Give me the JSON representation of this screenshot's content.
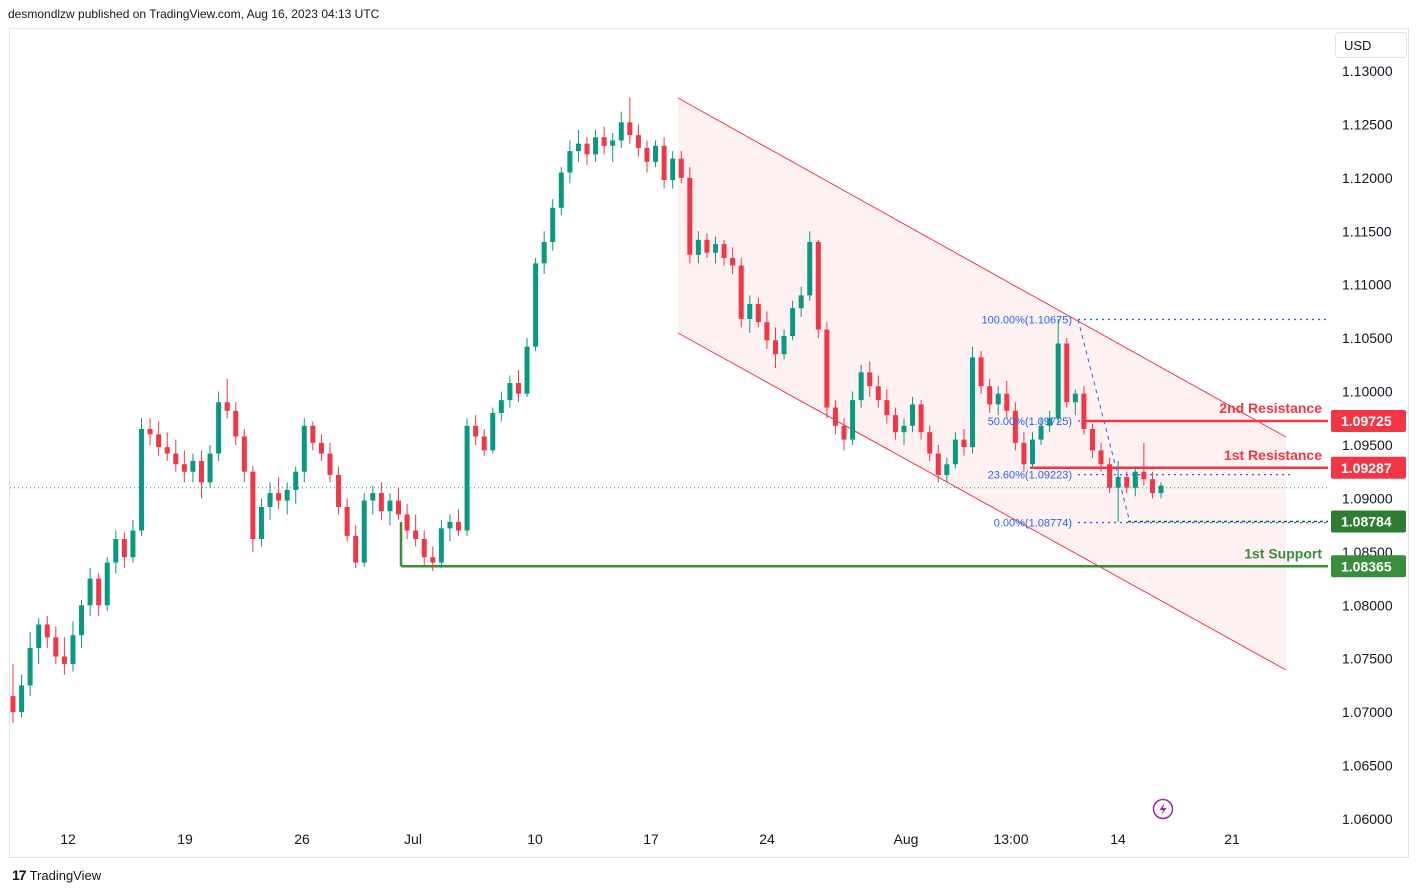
{
  "header": {
    "text": "desmondlzw published on TradingView.com, Aug 16, 2023 04:13 UTC"
  },
  "currency": "USD",
  "brand": {
    "logo": "17",
    "name": "TradingView"
  },
  "icon": "lightning-icon",
  "colors": {
    "up": "#089981",
    "down": "#f23645",
    "channel": "#f23645",
    "support": "#388e3c",
    "fib": "#2962ff"
  },
  "chart_data": {
    "type": "candlestick",
    "y_ticks": [
      "1.13000",
      "1.12500",
      "1.12000",
      "1.11500",
      "1.11000",
      "1.10500",
      "1.10000",
      "1.09500",
      "1.09000",
      "1.08500",
      "1.08000",
      "1.07500",
      "1.07000",
      "1.06500",
      "1.06000"
    ],
    "x_ticks": [
      "12",
      "19",
      "26",
      "Jul",
      "10",
      "17",
      "24",
      "Aug",
      "13:00",
      "14",
      "21"
    ],
    "ylim": [
      1.06,
      1.133
    ],
    "levels": [
      {
        "label": "2nd Resistance",
        "value": "1.09725",
        "color": "#f23645"
      },
      {
        "label": "1st Resistance",
        "value": "1.09287",
        "color": "#f23645"
      },
      {
        "label": "1st Support",
        "value": "1.08365",
        "color": "#388e3c"
      }
    ],
    "fib_levels": [
      {
        "text": "100.00%(1.10675)",
        "value": 1.10675
      },
      {
        "text": "50.00%(1.09725)",
        "value": 1.09725
      },
      {
        "text": "23.60%(1.09223)",
        "value": 1.09223
      },
      {
        "text": "0.00%(1.08774)",
        "value": 1.08774
      }
    ],
    "marker_value": "1.08784",
    "current_price": 1.091,
    "candles": [
      {
        "o": 1.0715,
        "h": 1.0745,
        "l": 1.069,
        "c": 1.07
      },
      {
        "o": 1.07,
        "h": 1.0735,
        "l": 1.0695,
        "c": 1.0725
      },
      {
        "o": 1.0725,
        "h": 1.0775,
        "l": 1.0715,
        "c": 1.076
      },
      {
        "o": 1.076,
        "h": 1.0788,
        "l": 1.0745,
        "c": 1.0782
      },
      {
        "o": 1.0782,
        "h": 1.079,
        "l": 1.076,
        "c": 1.077
      },
      {
        "o": 1.077,
        "h": 1.078,
        "l": 1.0745,
        "c": 1.0752
      },
      {
        "o": 1.0752,
        "h": 1.077,
        "l": 1.0735,
        "c": 1.0745
      },
      {
        "o": 1.0745,
        "h": 1.0785,
        "l": 1.0738,
        "c": 1.0772
      },
      {
        "o": 1.0772,
        "h": 1.0805,
        "l": 1.076,
        "c": 1.08
      },
      {
        "o": 1.08,
        "h": 1.0835,
        "l": 1.079,
        "c": 1.0825
      },
      {
        "o": 1.0825,
        "h": 1.083,
        "l": 1.079,
        "c": 1.08
      },
      {
        "o": 1.08,
        "h": 1.0845,
        "l": 1.0795,
        "c": 1.084
      },
      {
        "o": 1.084,
        "h": 1.087,
        "l": 1.083,
        "c": 1.0862
      },
      {
        "o": 1.0862,
        "h": 1.0868,
        "l": 1.0835,
        "c": 1.0845
      },
      {
        "o": 1.0845,
        "h": 1.088,
        "l": 1.084,
        "c": 1.087
      },
      {
        "o": 1.087,
        "h": 1.0975,
        "l": 1.0865,
        "c": 1.0965
      },
      {
        "o": 1.0965,
        "h": 1.0975,
        "l": 1.095,
        "c": 1.096
      },
      {
        "o": 1.096,
        "h": 1.0972,
        "l": 1.094,
        "c": 1.0948
      },
      {
        "o": 1.0948,
        "h": 1.0962,
        "l": 1.0935,
        "c": 1.0942
      },
      {
        "o": 1.0942,
        "h": 1.0955,
        "l": 1.0925,
        "c": 1.0932
      },
      {
        "o": 1.0932,
        "h": 1.0945,
        "l": 1.0915,
        "c": 1.0925
      },
      {
        "o": 1.0925,
        "h": 1.0942,
        "l": 1.0915,
        "c": 1.0935
      },
      {
        "o": 1.0935,
        "h": 1.0945,
        "l": 1.09,
        "c": 1.0915
      },
      {
        "o": 1.0915,
        "h": 1.095,
        "l": 1.091,
        "c": 1.0942
      },
      {
        "o": 1.0942,
        "h": 1.1,
        "l": 1.0935,
        "c": 1.099
      },
      {
        "o": 1.099,
        "h": 1.1012,
        "l": 1.0975,
        "c": 1.0982
      },
      {
        "o": 1.0982,
        "h": 1.099,
        "l": 1.095,
        "c": 1.0958
      },
      {
        "o": 1.0958,
        "h": 1.0965,
        "l": 1.0915,
        "c": 1.0925
      },
      {
        "o": 1.0925,
        "h": 1.093,
        "l": 1.085,
        "c": 1.0862
      },
      {
        "o": 1.0862,
        "h": 1.09,
        "l": 1.0855,
        "c": 1.0892
      },
      {
        "o": 1.0892,
        "h": 1.0915,
        "l": 1.088,
        "c": 1.0905
      },
      {
        "o": 1.0905,
        "h": 1.092,
        "l": 1.089,
        "c": 1.0898
      },
      {
        "o": 1.0898,
        "h": 1.0915,
        "l": 1.0885,
        "c": 1.0908
      },
      {
        "o": 1.0908,
        "h": 1.093,
        "l": 1.0895,
        "c": 1.0925
      },
      {
        "o": 1.0925,
        "h": 1.0975,
        "l": 1.0915,
        "c": 1.0968
      },
      {
        "o": 1.0968,
        "h": 1.0972,
        "l": 1.0945,
        "c": 1.0952
      },
      {
        "o": 1.0952,
        "h": 1.096,
        "l": 1.0935,
        "c": 1.0942
      },
      {
        "o": 1.0942,
        "h": 1.0952,
        "l": 1.0915,
        "c": 1.0922
      },
      {
        "o": 1.0922,
        "h": 1.093,
        "l": 1.0885,
        "c": 1.0892
      },
      {
        "o": 1.0892,
        "h": 1.09,
        "l": 1.086,
        "c": 1.0865
      },
      {
        "o": 1.0865,
        "h": 1.0875,
        "l": 1.0835,
        "c": 1.084
      },
      {
        "o": 1.084,
        "h": 1.0905,
        "l": 1.0836,
        "c": 1.0898
      },
      {
        "o": 1.0898,
        "h": 1.0912,
        "l": 1.0885,
        "c": 1.0905
      },
      {
        "o": 1.0905,
        "h": 1.0915,
        "l": 1.088,
        "c": 1.0888
      },
      {
        "o": 1.0888,
        "h": 1.0905,
        "l": 1.0875,
        "c": 1.0898
      },
      {
        "o": 1.0898,
        "h": 1.091,
        "l": 1.088,
        "c": 1.0885
      },
      {
        "o": 1.0885,
        "h": 1.0895,
        "l": 1.0862,
        "c": 1.087
      },
      {
        "o": 1.087,
        "h": 1.0885,
        "l": 1.0855,
        "c": 1.0862
      },
      {
        "o": 1.0862,
        "h": 1.087,
        "l": 1.0838,
        "c": 1.0845
      },
      {
        "o": 1.0845,
        "h": 1.0855,
        "l": 1.0832,
        "c": 1.084
      },
      {
        "o": 1.084,
        "h": 1.088,
        "l": 1.0835,
        "c": 1.0872
      },
      {
        "o": 1.0872,
        "h": 1.0885,
        "l": 1.086,
        "c": 1.0878
      },
      {
        "o": 1.0878,
        "h": 1.089,
        "l": 1.0865,
        "c": 1.087
      },
      {
        "o": 1.087,
        "h": 1.0975,
        "l": 1.0865,
        "c": 1.0968
      },
      {
        "o": 1.0968,
        "h": 1.0978,
        "l": 1.095,
        "c": 1.0958
      },
      {
        "o": 1.0958,
        "h": 1.0965,
        "l": 1.094,
        "c": 1.0945
      },
      {
        "o": 1.0945,
        "h": 1.0985,
        "l": 1.0942,
        "c": 1.098
      },
      {
        "o": 1.098,
        "h": 1.1,
        "l": 1.0972,
        "c": 1.0992
      },
      {
        "o": 1.0992,
        "h": 1.1015,
        "l": 1.0985,
        "c": 1.1008
      },
      {
        "o": 1.1008,
        "h": 1.102,
        "l": 1.099,
        "c": 1.0998
      },
      {
        "o": 1.0998,
        "h": 1.105,
        "l": 1.0995,
        "c": 1.1042
      },
      {
        "o": 1.1042,
        "h": 1.1125,
        "l": 1.1038,
        "c": 1.112
      },
      {
        "o": 1.112,
        "h": 1.115,
        "l": 1.111,
        "c": 1.114
      },
      {
        "o": 1.114,
        "h": 1.118,
        "l": 1.1132,
        "c": 1.1172
      },
      {
        "o": 1.1172,
        "h": 1.121,
        "l": 1.1165,
        "c": 1.1205
      },
      {
        "o": 1.1205,
        "h": 1.1235,
        "l": 1.1195,
        "c": 1.1225
      },
      {
        "o": 1.1225,
        "h": 1.1245,
        "l": 1.1215,
        "c": 1.1232
      },
      {
        "o": 1.1232,
        "h": 1.1238,
        "l": 1.1212,
        "c": 1.1222
      },
      {
        "o": 1.1222,
        "h": 1.1245,
        "l": 1.1215,
        "c": 1.1238
      },
      {
        "o": 1.1238,
        "h": 1.1248,
        "l": 1.1222,
        "c": 1.123
      },
      {
        "o": 1.123,
        "h": 1.1242,
        "l": 1.1215,
        "c": 1.1235
      },
      {
        "o": 1.1235,
        "h": 1.1262,
        "l": 1.1228,
        "c": 1.1252
      },
      {
        "o": 1.1252,
        "h": 1.1275,
        "l": 1.1232,
        "c": 1.124
      },
      {
        "o": 1.124,
        "h": 1.125,
        "l": 1.122,
        "c": 1.1228
      },
      {
        "o": 1.1228,
        "h": 1.1235,
        "l": 1.1205,
        "c": 1.1215
      },
      {
        "o": 1.1215,
        "h": 1.1235,
        "l": 1.121,
        "c": 1.123
      },
      {
        "o": 1.123,
        "h": 1.1238,
        "l": 1.119,
        "c": 1.1198
      },
      {
        "o": 1.1198,
        "h": 1.1225,
        "l": 1.119,
        "c": 1.1218
      },
      {
        "o": 1.1218,
        "h": 1.1225,
        "l": 1.1195,
        "c": 1.12
      },
      {
        "o": 1.12,
        "h": 1.121,
        "l": 1.112,
        "c": 1.1128
      },
      {
        "o": 1.1128,
        "h": 1.115,
        "l": 1.112,
        "c": 1.1142
      },
      {
        "o": 1.1142,
        "h": 1.1148,
        "l": 1.1125,
        "c": 1.113
      },
      {
        "o": 1.113,
        "h": 1.1145,
        "l": 1.112,
        "c": 1.1138
      },
      {
        "o": 1.1138,
        "h": 1.1142,
        "l": 1.1118,
        "c": 1.1125
      },
      {
        "o": 1.1125,
        "h": 1.1135,
        "l": 1.111,
        "c": 1.1118
      },
      {
        "o": 1.1118,
        "h": 1.1125,
        "l": 1.106,
        "c": 1.1068
      },
      {
        "o": 1.1068,
        "h": 1.109,
        "l": 1.1055,
        "c": 1.1082
      },
      {
        "o": 1.1082,
        "h": 1.1088,
        "l": 1.106,
        "c": 1.1065
      },
      {
        "o": 1.1065,
        "h": 1.1075,
        "l": 1.104,
        "c": 1.1048
      },
      {
        "o": 1.1048,
        "h": 1.106,
        "l": 1.1022,
        "c": 1.1035
      },
      {
        "o": 1.1035,
        "h": 1.1058,
        "l": 1.103,
        "c": 1.1052
      },
      {
        "o": 1.1052,
        "h": 1.1085,
        "l": 1.1048,
        "c": 1.1078
      },
      {
        "o": 1.1078,
        "h": 1.1098,
        "l": 1.107,
        "c": 1.109
      },
      {
        "o": 1.109,
        "h": 1.115,
        "l": 1.1085,
        "c": 1.114
      },
      {
        "o": 1.114,
        "h": 1.1142,
        "l": 1.105,
        "c": 1.1058
      },
      {
        "o": 1.1058,
        "h": 1.1065,
        "l": 1.0975,
        "c": 1.0985
      },
      {
        "o": 1.0985,
        "h": 1.0992,
        "l": 1.096,
        "c": 1.0968
      },
      {
        "o": 1.0968,
        "h": 1.0975,
        "l": 1.0945,
        "c": 1.0955
      },
      {
        "o": 1.0955,
        "h": 1.1,
        "l": 1.095,
        "c": 1.0992
      },
      {
        "o": 1.0992,
        "h": 1.1025,
        "l": 1.0985,
        "c": 1.1018
      },
      {
        "o": 1.1018,
        "h": 1.1028,
        "l": 1.0995,
        "c": 1.1005
      },
      {
        "o": 1.1005,
        "h": 1.1015,
        "l": 1.0985,
        "c": 1.0992
      },
      {
        "o": 1.0992,
        "h": 1.1002,
        "l": 1.097,
        "c": 1.0978
      },
      {
        "o": 1.0978,
        "h": 1.0985,
        "l": 1.0955,
        "c": 1.0962
      },
      {
        "o": 1.0962,
        "h": 1.0975,
        "l": 1.095,
        "c": 1.0968
      },
      {
        "o": 1.0968,
        "h": 1.0995,
        "l": 1.0962,
        "c": 1.0988
      },
      {
        "o": 1.0988,
        "h": 1.0992,
        "l": 1.0955,
        "c": 1.0962
      },
      {
        "o": 1.0962,
        "h": 1.0968,
        "l": 1.0935,
        "c": 1.0942
      },
      {
        "o": 1.0942,
        "h": 1.095,
        "l": 1.0915,
        "c": 1.0922
      },
      {
        "o": 1.0922,
        "h": 1.0938,
        "l": 1.0915,
        "c": 1.0932
      },
      {
        "o": 1.0932,
        "h": 1.0962,
        "l": 1.0928,
        "c": 1.0955
      },
      {
        "o": 1.0955,
        "h": 1.0965,
        "l": 1.094,
        "c": 1.0948
      },
      {
        "o": 1.0948,
        "h": 1.1042,
        "l": 1.0942,
        "c": 1.1032
      },
      {
        "o": 1.1032,
        "h": 1.1038,
        "l": 1.0998,
        "c": 1.1005
      },
      {
        "o": 1.1005,
        "h": 1.1012,
        "l": 1.098,
        "c": 1.0988
      },
      {
        "o": 1.0988,
        "h": 1.1005,
        "l": 1.0978,
        "c": 1.0998
      },
      {
        "o": 1.0998,
        "h": 1.101,
        "l": 1.0975,
        "c": 1.0982
      },
      {
        "o": 1.0982,
        "h": 1.099,
        "l": 1.0945,
        "c": 1.0952
      },
      {
        "o": 1.0952,
        "h": 1.0962,
        "l": 1.0925,
        "c": 1.0932
      },
      {
        "o": 1.0932,
        "h": 1.0962,
        "l": 1.0928,
        "c": 1.0955
      },
      {
        "o": 1.0955,
        "h": 1.0975,
        "l": 1.095,
        "c": 1.0968
      },
      {
        "o": 1.0968,
        "h": 1.0982,
        "l": 1.0962,
        "c": 1.0975
      },
      {
        "o": 1.0975,
        "h": 1.1068,
        "l": 1.097,
        "c": 1.1045
      },
      {
        "o": 1.1045,
        "h": 1.105,
        "l": 1.0985,
        "c": 1.099
      },
      {
        "o": 1.099,
        "h": 1.1002,
        "l": 1.0978,
        "c": 1.0998
      },
      {
        "o": 1.0998,
        "h": 1.1005,
        "l": 1.096,
        "c": 1.0965
      },
      {
        "o": 1.0965,
        "h": 1.097,
        "l": 1.0938,
        "c": 1.0945
      },
      {
        "o": 1.0945,
        "h": 1.0952,
        "l": 1.0925,
        "c": 1.0932
      },
      {
        "o": 1.0932,
        "h": 1.0938,
        "l": 1.0905,
        "c": 1.091
      },
      {
        "o": 1.091,
        "h": 1.0935,
        "l": 1.0878,
        "c": 1.092
      },
      {
        "o": 1.092,
        "h": 1.0925,
        "l": 1.0905,
        "c": 1.091
      },
      {
        "o": 1.091,
        "h": 1.093,
        "l": 1.0902,
        "c": 1.0925
      },
      {
        "o": 1.0925,
        "h": 1.0952,
        "l": 1.0912,
        "c": 1.0918
      },
      {
        "o": 1.0918,
        "h": 1.0925,
        "l": 1.09,
        "c": 1.0905
      },
      {
        "o": 1.0905,
        "h": 1.0915,
        "l": 1.09,
        "c": 1.0912
      }
    ]
  }
}
